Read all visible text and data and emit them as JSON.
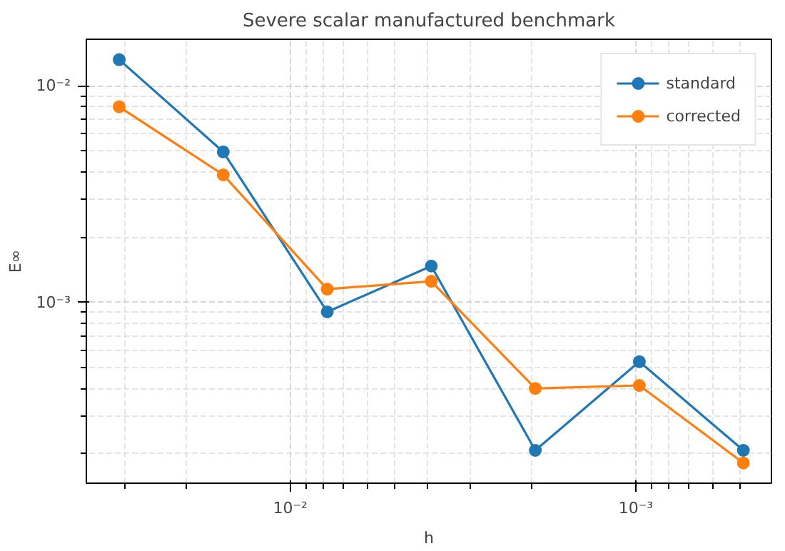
{
  "chart_data": {
    "type": "line",
    "title": "Severe scalar manufactured benchmark",
    "xlabel": "h",
    "ylabel": "E∞",
    "x": [
      0.03125,
      0.015625,
      0.0078125,
      0.00390625,
      0.001953125,
      0.0009765625,
      0.00048828125
    ],
    "series": [
      {
        "name": "standard",
        "color": "#1f77b4",
        "values": [
          0.0132,
          0.00495,
          0.000903,
          0.00147,
          0.000207,
          0.000532,
          0.000207
        ]
      },
      {
        "name": "corrected",
        "color": "#ff7f0e",
        "values": [
          0.008,
          0.00388,
          0.00115,
          0.00125,
          0.0004,
          0.000413,
          0.000181
        ]
      }
    ],
    "log": "xy",
    "xlim": [
      0.0389,
      0.000405
    ],
    "ylim": [
      0.000146,
      0.0164
    ],
    "xticks": [
      {
        "value": 0.01,
        "label": "10⁻²"
      },
      {
        "value": 0.001,
        "label": "10⁻³"
      }
    ],
    "yticks": [
      {
        "value": 0.01,
        "label": "10⁻²"
      },
      {
        "value": 0.001,
        "label": "10⁻³"
      }
    ],
    "grid": true,
    "legend": "top right",
    "marker": "circle",
    "line_style": "solid"
  }
}
